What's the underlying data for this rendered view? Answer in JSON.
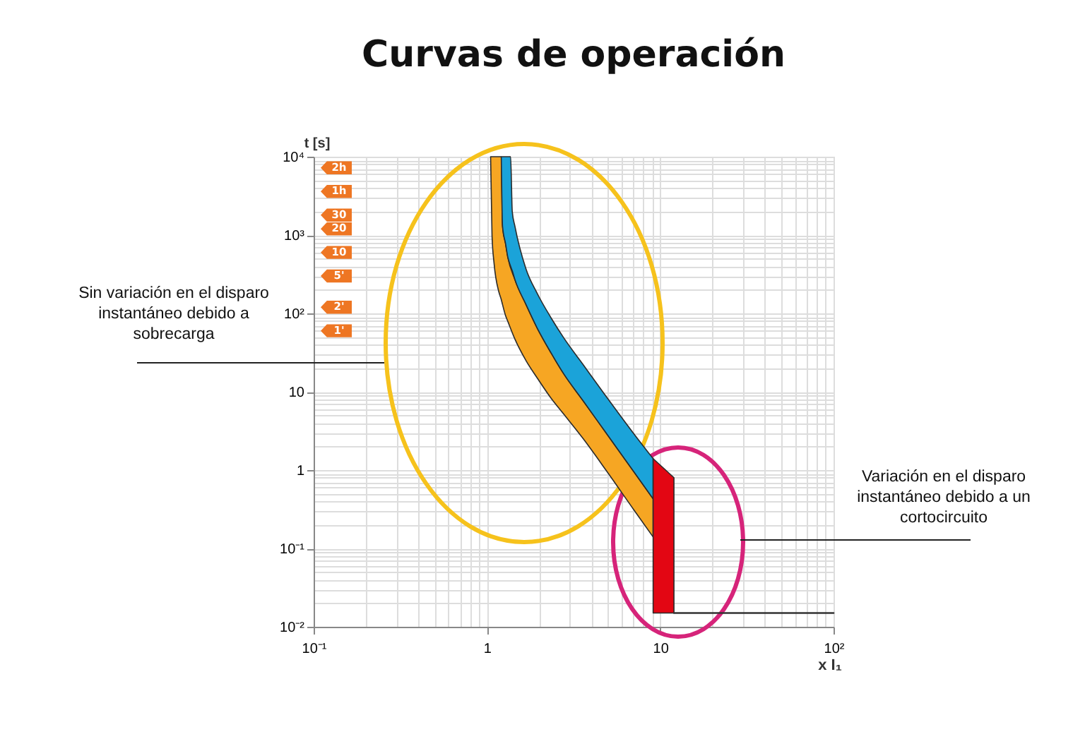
{
  "chart_data": {
    "type": "area",
    "title": "Curvas de operación",
    "xlabel": "x I₁",
    "ylabel": "t [s]",
    "log": "xy",
    "xlim": [
      0.1,
      100
    ],
    "ylim": [
      0.01,
      10000
    ],
    "xticks": [
      {
        "value": 0.1,
        "label": "10⁻¹"
      },
      {
        "value": 0.2,
        "label": null
      },
      {
        "value": 0.3,
        "label": null
      },
      {
        "value": 0.4,
        "label": null
      },
      {
        "value": 0.5,
        "label": null
      },
      {
        "value": 0.6,
        "label": null
      },
      {
        "value": 0.7,
        "label": null
      },
      {
        "value": 0.8,
        "label": null
      },
      {
        "value": 0.9,
        "label": null
      },
      1,
      {
        "value": 2,
        "label": null
      },
      {
        "value": 3,
        "label": null
      },
      {
        "value": 4,
        "label": null
      },
      {
        "value": 5,
        "label": null
      },
      {
        "value": 6,
        "label": null
      },
      {
        "value": 7,
        "label": null
      },
      {
        "value": 8,
        "label": null
      },
      {
        "value": 9,
        "label": null
      },
      10,
      {
        "value": 20,
        "label": null
      },
      {
        "value": 30,
        "label": null
      },
      {
        "value": 40,
        "label": null
      },
      {
        "value": 50,
        "label": null
      },
      {
        "value": 60,
        "label": null
      },
      {
        "value": 70,
        "label": null
      },
      {
        "value": 80,
        "label": null
      },
      {
        "value": 90,
        "label": null
      },
      {
        "value": 100,
        "label": "10²"
      }
    ],
    "yticks": [
      {
        "value": 0.01,
        "label": "10⁻²"
      },
      {
        "value": 0.02,
        "label": null
      },
      {
        "value": 0.03,
        "label": null
      },
      {
        "value": 0.04,
        "label": null
      },
      {
        "value": 0.05,
        "label": null
      },
      {
        "value": 0.06,
        "label": null
      },
      {
        "value": 0.07,
        "label": null
      },
      {
        "value": 0.08,
        "label": null
      },
      {
        "value": 0.09,
        "label": null
      },
      {
        "value": 0.1,
        "label": "10⁻¹"
      },
      {
        "value": 0.2,
        "label": null
      },
      {
        "value": 0.3,
        "label": null
      },
      {
        "value": 0.4,
        "label": null
      },
      {
        "value": 0.5,
        "label": null
      },
      {
        "value": 0.6,
        "label": null
      },
      {
        "value": 0.7,
        "label": null
      },
      {
        "value": 0.8,
        "label": null
      },
      {
        "value": 0.9,
        "label": null
      },
      1,
      {
        "value": 2,
        "label": null
      },
      {
        "value": 3,
        "label": null
      },
      {
        "value": 4,
        "label": null
      },
      {
        "value": 5,
        "label": null
      },
      {
        "value": 6,
        "label": null
      },
      {
        "value": 7,
        "label": null
      },
      {
        "value": 8,
        "label": null
      },
      {
        "value": 9,
        "label": null
      },
      10,
      {
        "value": 20,
        "label": null
      },
      {
        "value": 30,
        "label": null
      },
      {
        "value": 40,
        "label": null
      },
      {
        "value": 50,
        "label": null
      },
      {
        "value": 60,
        "label": null
      },
      {
        "value": 70,
        "label": null
      },
      {
        "value": 80,
        "label": null
      },
      {
        "value": 90,
        "label": null
      },
      {
        "value": 100,
        "label": "10²"
      },
      {
        "value": 200,
        "label": null
      },
      {
        "value": 300,
        "label": null
      },
      {
        "value": 400,
        "label": null
      },
      {
        "value": 500,
        "label": null
      },
      {
        "value": 600,
        "label": null
      },
      {
        "value": 700,
        "label": null
      },
      {
        "value": 800,
        "label": null
      },
      {
        "value": 900,
        "label": null
      },
      {
        "value": 1000,
        "label": "10³"
      },
      {
        "value": 2000,
        "label": null
      },
      {
        "value": 3000,
        "label": null
      },
      {
        "value": 4000,
        "label": null
      },
      {
        "value": 5000,
        "label": null
      },
      {
        "value": 6000,
        "label": null
      },
      {
        "value": 7000,
        "label": null
      },
      {
        "value": 8000,
        "label": null
      },
      {
        "value": 9000,
        "label": null
      },
      {
        "value": 10000,
        "label": "10⁴"
      }
    ],
    "grid": true,
    "series": [
      {
        "color": "#f6a623",
        "x": [
          1.05,
          1.07,
          1.1,
          1.17,
          1.21,
          1.23,
          1.28,
          1.32,
          1.45,
          1.68,
          1.95,
          2.35,
          2.77,
          3.6,
          4.86,
          7.05,
          9.1
        ],
        "values": [
          null,
          null,
          null,
          null,
          null,
          null,
          null,
          null,
          null,
          null,
          null,
          null,
          null,
          null,
          null,
          null,
          null
        ],
        "lower": [
          10000,
          980,
          430,
          190,
          150,
          130,
          94,
          79,
          47,
          25,
          15,
          8.2,
          5.2,
          2.5,
          1.0,
          0.31,
          0.14
        ],
        "upper": [
          10000,
          10000,
          10000,
          10000,
          10000,
          1300,
          780,
          520,
          270,
          130,
          65,
          31,
          17,
          7.6,
          3.0,
          0.95,
          0.43
        ]
      },
      {
        "color": "#1ba3d9",
        "x": [
          1.21,
          1.23,
          1.28,
          1.32,
          1.37,
          1.4,
          1.45,
          1.68,
          1.95,
          2.35,
          2.77,
          3.6,
          4.86,
          7.05,
          9.1
        ],
        "values": [
          null,
          null,
          null,
          null,
          null,
          null,
          null,
          null,
          null,
          null,
          null,
          null,
          null,
          null,
          null
        ],
        "lower": [
          10000,
          1300,
          780,
          520,
          400,
          350,
          270,
          130,
          65,
          31,
          17,
          7.6,
          3.0,
          0.95,
          0.43
        ],
        "upper": [
          10000,
          10000,
          10000,
          10000,
          10000,
          2000,
          1300,
          370,
          180,
          87,
          49,
          22,
          8.8,
          2.9,
          1.4
        ]
      },
      {
        "color": "#e30613",
        "x": [
          9.1,
          12
        ],
        "values": [
          null,
          null
        ],
        "lower": [
          0.015,
          0.015
        ],
        "upper": [
          1.4,
          0.8
        ]
      },
      {
        "type": "line",
        "color": "#333333",
        "x": [
          12,
          100
        ],
        "values": [
          0.015,
          0.015
        ]
      }
    ],
    "annotations": [
      {
        "text": "2h",
        "y": 7200
      },
      {
        "text": "1h",
        "y": 3600
      },
      {
        "text": "30",
        "y": 1800
      },
      {
        "text": "20",
        "y": 1200
      },
      {
        "text": "10",
        "y": 600
      },
      {
        "text": "5'",
        "y": 300
      },
      {
        "text": "2'",
        "y": 120
      },
      {
        "text": "1'",
        "y": 60
      },
      "Sin variación en el disparo instantáneo debido a sobrecarga",
      "Variación en el disparo instantáneo debido a un cortocircuito"
    ]
  }
}
